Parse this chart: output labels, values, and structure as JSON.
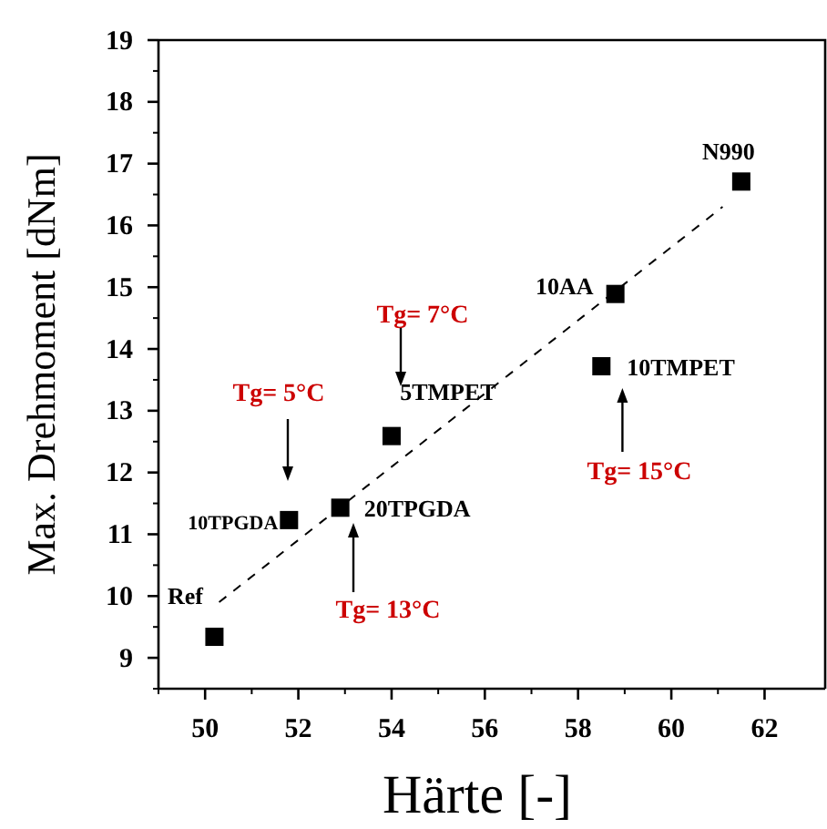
{
  "chart_data": {
    "type": "scatter",
    "xlabel": "Härte [-]",
    "ylabel": "Max. Drehmoment [dNm]",
    "xlim": [
      49,
      63.3
    ],
    "ylim": [
      8.5,
      19
    ],
    "xticks": [
      50,
      52,
      54,
      56,
      58,
      60,
      62
    ],
    "yticks": [
      9,
      10,
      11,
      12,
      13,
      14,
      15,
      16,
      17,
      18,
      19
    ],
    "marker": "square",
    "series": [
      {
        "color": "#000000",
        "x": [
          50.2,
          51.8,
          52.9,
          54.0,
          58.5,
          58.8,
          61.5
        ],
        "values": [
          9.34,
          11.23,
          11.43,
          12.59,
          13.72,
          14.89,
          16.71
        ]
      },
      {
        "type": "line",
        "color": "#000000",
        "line_style": "dashed",
        "marker": "none",
        "x": [
          50.3,
          61.1
        ],
        "values": [
          9.9,
          16.3
        ]
      }
    ],
    "annotations": [
      {
        "text": "Ref",
        "x": 50.2,
        "y": 9.34
      },
      {
        "text": "10TPGDA",
        "x": 51.8,
        "y": 11.23
      },
      {
        "text": "20TPGDA",
        "x": 52.9,
        "y": 11.43
      },
      {
        "text": "5TMPET",
        "x": 54.0,
        "y": 12.59
      },
      {
        "text": "10TMPET",
        "x": 58.5,
        "y": 13.72
      },
      {
        "text": "10AA",
        "x": 58.8,
        "y": 14.89
      },
      {
        "text": "N990",
        "x": 61.5,
        "y": 16.71
      },
      "Tg= 5°C",
      "Tg= 7°C",
      "Tg= 13°C",
      "Tg= 15°C"
    ]
  }
}
